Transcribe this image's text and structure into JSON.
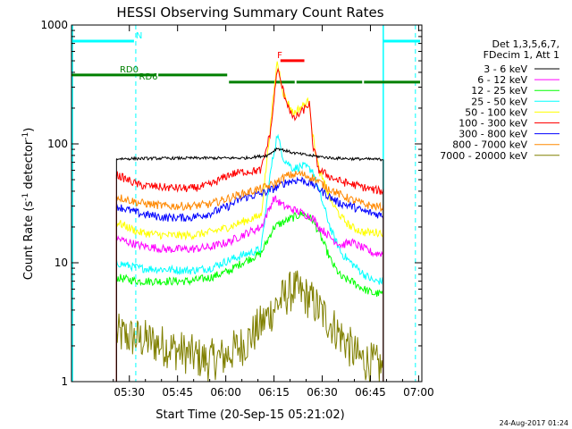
{
  "chart_data": {
    "type": "line",
    "title": "HESSI Observing Summary Count Rates",
    "xlabel": "Start Time (20-Sep-15 05:21:02)",
    "ylabel_main": "Count Rate (s",
    "ylabel_exp1": "-1",
    "ylabel_mid": " detector",
    "ylabel_exp2": "-1",
    "ylabel_close": ")",
    "y_scale": "log",
    "ylim": [
      1,
      1000
    ],
    "xlim_minutes": [
      -9,
      100
    ],
    "x_ticks": [
      {
        "label": "05:30",
        "m": 9
      },
      {
        "label": "05:45",
        "m": 24
      },
      {
        "label": "06:00",
        "m": 39
      },
      {
        "label": "06:15",
        "m": 54
      },
      {
        "label": "06:30",
        "m": 69
      },
      {
        "label": "06:45",
        "m": 84
      },
      {
        "label": "07:00",
        "m": 99
      }
    ],
    "y_ticks": [
      {
        "label": "1",
        "v": 1
      },
      {
        "label": "10",
        "v": 10
      },
      {
        "label": "100",
        "v": 100
      },
      {
        "label": "1000",
        "v": 1000
      }
    ],
    "legend_header": [
      "Det 1,3,5,6,7,",
      "FDecim 1, Att 1"
    ],
    "legend_position": "right",
    "timestamp": "24-Aug-2017 01:24",
    "data_gap_minutes": [
      [
        -9,
        5
      ],
      [
        88,
        100
      ]
    ],
    "series": [
      {
        "name": "3 - 6 keV",
        "color": "#000000",
        "points": [
          [
            5,
            75
          ],
          [
            30,
            76
          ],
          [
            45,
            76
          ],
          [
            52,
            80
          ],
          [
            55,
            92
          ],
          [
            60,
            84
          ],
          [
            65,
            80
          ],
          [
            72,
            76
          ],
          [
            78,
            75
          ],
          [
            88,
            74
          ]
        ]
      },
      {
        "name": "6 - 12 keV",
        "color": "#ff00ff",
        "points": [
          [
            5,
            16
          ],
          [
            12,
            14
          ],
          [
            20,
            13
          ],
          [
            28,
            13
          ],
          [
            34,
            13.5
          ],
          [
            40,
            15
          ],
          [
            44,
            17
          ],
          [
            50,
            20
          ],
          [
            54,
            35
          ],
          [
            57,
            30
          ],
          [
            60,
            28
          ],
          [
            63,
            26
          ],
          [
            66,
            24
          ],
          [
            68,
            20
          ],
          [
            72,
            16
          ],
          [
            75,
            14
          ],
          [
            78,
            15
          ],
          [
            80,
            14
          ],
          [
            85,
            12
          ],
          [
            88,
            12
          ]
        ]
      },
      {
        "name": "12 - 25 keV",
        "color": "#00ff00",
        "points": [
          [
            5,
            7.5
          ],
          [
            12,
            7
          ],
          [
            20,
            7
          ],
          [
            28,
            7
          ],
          [
            34,
            7.5
          ],
          [
            40,
            8.5
          ],
          [
            44,
            10
          ],
          [
            50,
            12
          ],
          [
            54,
            20
          ],
          [
            57,
            22
          ],
          [
            60,
            24
          ],
          [
            63,
            26
          ],
          [
            66,
            23
          ],
          [
            68,
            18
          ],
          [
            72,
            10
          ],
          [
            75,
            7.5
          ],
          [
            78,
            7
          ],
          [
            82,
            6
          ],
          [
            85,
            5.5
          ],
          [
            88,
            5.5
          ]
        ]
      },
      {
        "name": "25 - 50 keV",
        "color": "#00ffff",
        "points": [
          [
            5,
            10
          ],
          [
            12,
            9
          ],
          [
            20,
            8.8
          ],
          [
            28,
            8.6
          ],
          [
            34,
            9
          ],
          [
            40,
            10.5
          ],
          [
            44,
            11.5
          ],
          [
            50,
            13
          ],
          [
            53,
            60
          ],
          [
            55,
            120
          ],
          [
            57,
            75
          ],
          [
            60,
            62
          ],
          [
            63,
            65
          ],
          [
            66,
            60
          ],
          [
            68,
            40
          ],
          [
            72,
            18
          ],
          [
            75,
            12
          ],
          [
            78,
            10
          ],
          [
            82,
            8
          ],
          [
            85,
            7
          ],
          [
            88,
            7
          ]
        ]
      },
      {
        "name": "50 - 100 keV",
        "color": "#ffff00",
        "points": [
          [
            5,
            22
          ],
          [
            12,
            18
          ],
          [
            20,
            17
          ],
          [
            28,
            17
          ],
          [
            34,
            18
          ],
          [
            40,
            20
          ],
          [
            44,
            22
          ],
          [
            50,
            25
          ],
          [
            53,
            150
          ],
          [
            55,
            500
          ],
          [
            57,
            260
          ],
          [
            60,
            180
          ],
          [
            63,
            210
          ],
          [
            65,
            230
          ],
          [
            66,
            120
          ],
          [
            68,
            60
          ],
          [
            72,
            32
          ],
          [
            75,
            24
          ],
          [
            78,
            20
          ],
          [
            82,
            18
          ],
          [
            85,
            18
          ],
          [
            88,
            18
          ]
        ]
      },
      {
        "name": "100 - 300 keV",
        "color": "#ff0000",
        "points": [
          [
            5,
            55
          ],
          [
            12,
            45
          ],
          [
            20,
            43
          ],
          [
            28,
            42
          ],
          [
            34,
            45
          ],
          [
            40,
            55
          ],
          [
            44,
            58
          ],
          [
            50,
            60
          ],
          [
            53,
            130
          ],
          [
            55,
            430
          ],
          [
            57,
            270
          ],
          [
            60,
            160
          ],
          [
            63,
            190
          ],
          [
            65,
            220
          ],
          [
            66,
            100
          ],
          [
            68,
            60
          ],
          [
            72,
            52
          ],
          [
            75,
            48
          ],
          [
            78,
            46
          ],
          [
            82,
            43
          ],
          [
            85,
            41
          ],
          [
            88,
            40
          ]
        ]
      },
      {
        "name": "300 - 800 keV",
        "color": "#0000ff",
        "points": [
          [
            5,
            30
          ],
          [
            12,
            26
          ],
          [
            20,
            24
          ],
          [
            28,
            24
          ],
          [
            34,
            26
          ],
          [
            40,
            30
          ],
          [
            44,
            35
          ],
          [
            50,
            38
          ],
          [
            54,
            42
          ],
          [
            58,
            48
          ],
          [
            62,
            50
          ],
          [
            66,
            46
          ],
          [
            70,
            38
          ],
          [
            74,
            32
          ],
          [
            78,
            30
          ],
          [
            82,
            27
          ],
          [
            85,
            26
          ],
          [
            88,
            25
          ]
        ]
      },
      {
        "name": "800 - 7000 keV",
        "color": "#ff8800",
        "points": [
          [
            5,
            36
          ],
          [
            12,
            32
          ],
          [
            20,
            30
          ],
          [
            28,
            30
          ],
          [
            34,
            31
          ],
          [
            40,
            35
          ],
          [
            44,
            38
          ],
          [
            50,
            42
          ],
          [
            54,
            46
          ],
          [
            58,
            54
          ],
          [
            62,
            56
          ],
          [
            66,
            52
          ],
          [
            70,
            44
          ],
          [
            74,
            38
          ],
          [
            78,
            34
          ],
          [
            82,
            31
          ],
          [
            85,
            30
          ],
          [
            88,
            29
          ]
        ]
      },
      {
        "name": "7000 - 20000 keV",
        "color": "#808000",
        "points": [
          [
            5,
            2.5
          ],
          [
            15,
            2.2
          ],
          [
            25,
            1.8
          ],
          [
            33,
            1.5
          ],
          [
            38,
            1.6
          ],
          [
            45,
            2.1
          ],
          [
            50,
            3
          ],
          [
            55,
            4.5
          ],
          [
            60,
            6
          ],
          [
            65,
            5
          ],
          [
            70,
            3.5
          ],
          [
            75,
            2.4
          ],
          [
            80,
            1.6
          ],
          [
            85,
            1.4
          ],
          [
            88,
            1.3
          ]
        ]
      }
    ],
    "markers": [
      {
        "label": "N",
        "color": "#00ffff",
        "segments": [
          [
            -9,
            11
          ],
          [
            88,
            100
          ]
        ],
        "level_ratio": 0.045,
        "label_m": 11,
        "vertical_solid_m": [
          -9,
          88
        ],
        "vertical_dashed_m": [
          11,
          98
        ]
      },
      {
        "label": "F",
        "color": "#ff0000",
        "segments": [
          [
            56,
            64
          ]
        ],
        "level_ratio": 0.1,
        "label_m": 55
      },
      {
        "label": "RD0",
        "color": "#008000",
        "segments": [
          [
            -9,
            18
          ],
          [
            18,
            40
          ]
        ],
        "level_ratio": 0.14,
        "label_m": 6
      },
      {
        "label": "RD6",
        "color": "#008000",
        "segments": [
          [
            40,
            61
          ],
          [
            61,
            82
          ],
          [
            82,
            100
          ]
        ],
        "level_ratio": 0.16,
        "label_m": 12
      }
    ]
  }
}
